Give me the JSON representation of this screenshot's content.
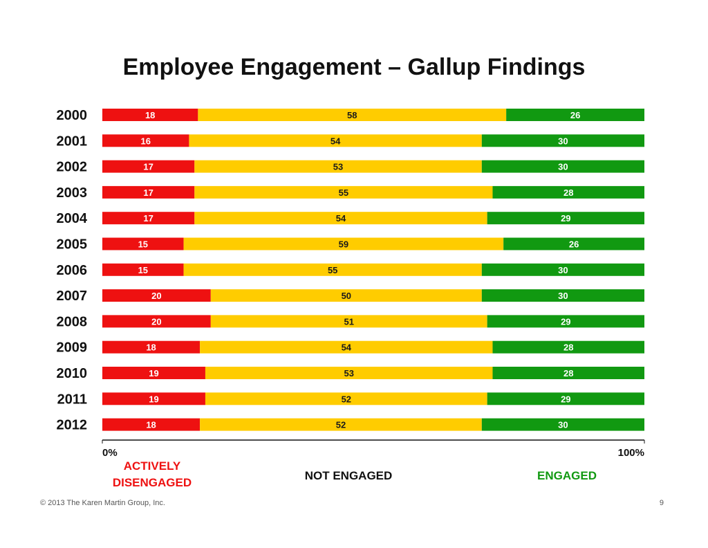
{
  "chart_data": {
    "type": "bar",
    "orientation": "horizontal",
    "stacked": true,
    "title": "Employee Engagement – Gallup Findings",
    "categories": [
      "2000",
      "2001",
      "2002",
      "2003",
      "2004",
      "2005",
      "2006",
      "2007",
      "2008",
      "2009",
      "2010",
      "2011",
      "2012"
    ],
    "series": [
      {
        "name": "ACTIVELY DISENGAGED",
        "color": "#ee1111",
        "label_color": "#ffffff",
        "values": [
          18,
          16,
          17,
          17,
          17,
          15,
          15,
          20,
          20,
          18,
          19,
          19,
          18
        ]
      },
      {
        "name": "NOT ENGAGED",
        "color": "#ffcc00",
        "label_color": "#1a1a1a",
        "values": [
          58,
          54,
          53,
          55,
          54,
          59,
          55,
          50,
          51,
          54,
          53,
          52,
          52
        ]
      },
      {
        "name": "ENGAGED",
        "color": "#119911",
        "label_color": "#ffffff",
        "values": [
          26,
          30,
          30,
          28,
          29,
          26,
          30,
          30,
          29,
          28,
          28,
          29,
          30
        ]
      }
    ],
    "xlim": [
      0,
      100
    ],
    "x_tick_labels": [
      "0%",
      "100%"
    ],
    "legend_position": "bottom"
  },
  "legend": {
    "disengaged_line1": "ACTIVELY",
    "disengaged_line2": "DISENGAGED",
    "not_engaged": "NOT ENGAGED",
    "engaged": "ENGAGED",
    "disengaged_color": "#ee1111",
    "engaged_color": "#119911"
  },
  "footer": {
    "copyright": "© 2013 The Karen Martin Group, Inc.",
    "page_number": "9"
  }
}
